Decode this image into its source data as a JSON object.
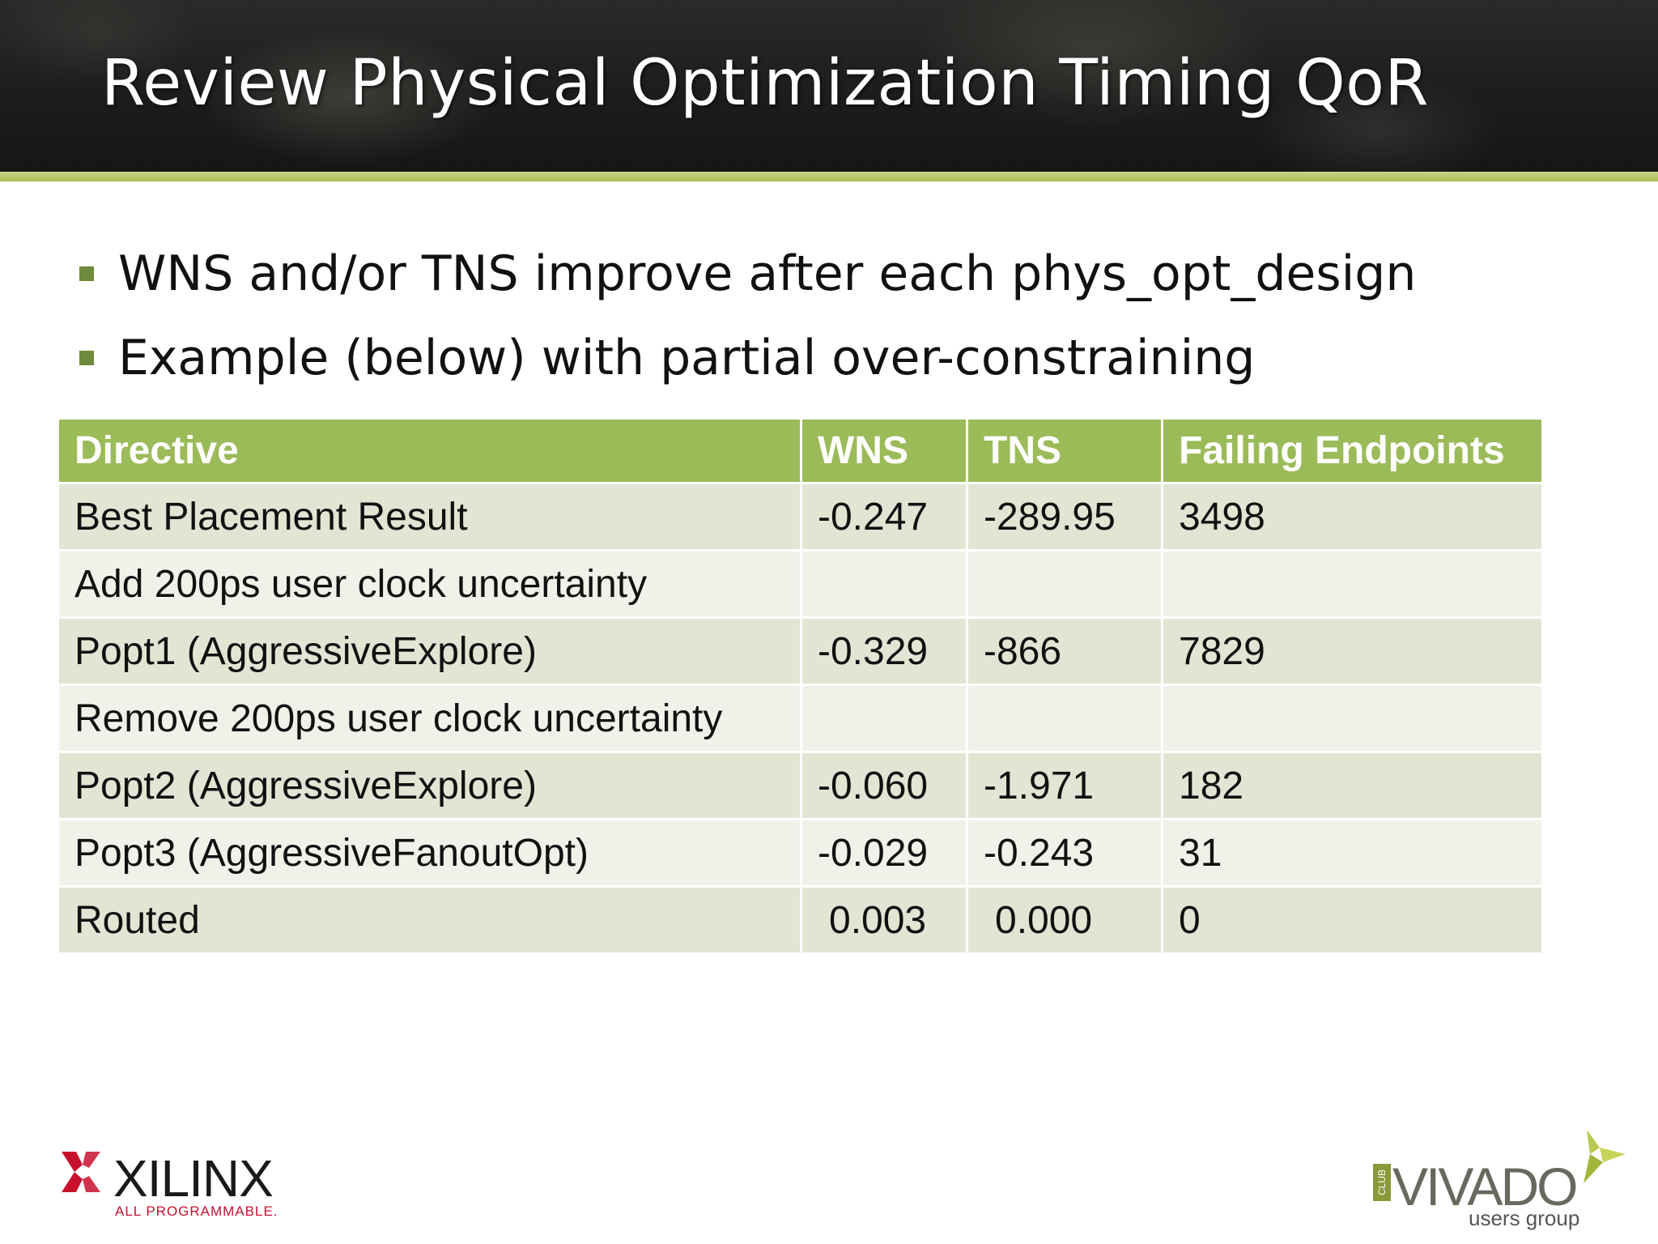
{
  "slide": {
    "title": "Review Physical Optimization Timing QoR",
    "bullets": [
      "WNS and/or TNS improve after each phys_opt_design",
      "Example (below) with partial over-constraining"
    ]
  },
  "table": {
    "headers": [
      "Directive",
      "WNS",
      "TNS",
      "Failing Endpoints"
    ],
    "rows": [
      [
        "Best Placement Result",
        "-0.247",
        "-289.95",
        "3498"
      ],
      [
        "Add 200ps user clock uncertainty",
        "",
        "",
        ""
      ],
      [
        "Popt1 (AggressiveExplore)",
        "-0.329",
        "-866",
        "7829"
      ],
      [
        "Remove 200ps user clock uncertainty",
        "",
        "",
        ""
      ],
      [
        "Popt2 (AggressiveExplore)",
        "-0.060",
        "-1.971",
        "182"
      ],
      [
        "Popt3 (AggressiveFanoutOpt)",
        "-0.029",
        "-0.243",
        "31"
      ],
      [
        "Routed",
        " 0.003",
        " 0.000",
        "0"
      ]
    ]
  },
  "footer": {
    "xilinx": {
      "name": "XILINX",
      "tagline": "ALL PROGRAMMABLE."
    },
    "vivado": {
      "club": "CLUB",
      "name": "VIVADO",
      "sub": "users group"
    }
  },
  "colors": {
    "header_bg": "#1c1c1b",
    "accent_bar": "#a9bc55",
    "table_header": "#9bbb59",
    "row_odd": "#e0e6d3",
    "row_even": "#f0f2ea",
    "bullet": "#6e8a3c",
    "xilinx_red": "#c8102e"
  }
}
